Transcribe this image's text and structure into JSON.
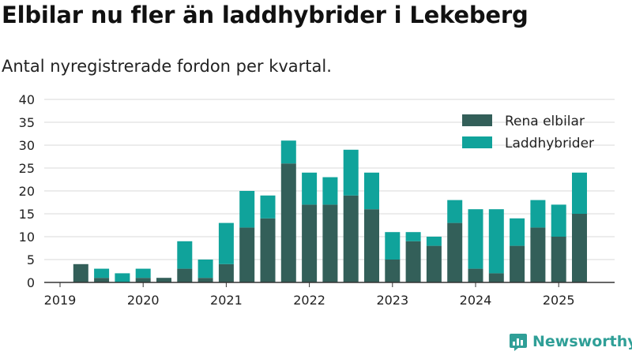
{
  "title": "Elbilar nu fler än laddhybrider i Lekeberg",
  "subtitle": "Antal nyregistrerade fordon per kvartal.",
  "logo_text": "Newsworthy",
  "colors": {
    "elbilar": "#335f59",
    "laddhybrider": "#10a39b",
    "grid": "#d9d9d9",
    "axis": "#333333",
    "logo": "#2f9f97"
  },
  "chart_data": {
    "type": "bar",
    "stacked": true,
    "categories": [
      "2019 Q1",
      "2019 Q2",
      "2019 Q3",
      "2019 Q4",
      "2020 Q1",
      "2020 Q2",
      "2020 Q3",
      "2020 Q4",
      "2021 Q1",
      "2021 Q2",
      "2021 Q3",
      "2021 Q4",
      "2022 Q1",
      "2022 Q2",
      "2022 Q3",
      "2022 Q4",
      "2023 Q1",
      "2023 Q2",
      "2023 Q3",
      "2023 Q4",
      "2024 Q1",
      "2024 Q2",
      "2024 Q3",
      "2024 Q4",
      "2025 Q1",
      "2025 Q2"
    ],
    "series": [
      {
        "name": "Rena elbilar",
        "values": [
          0,
          4,
          1,
          0,
          1,
          1,
          3,
          1,
          4,
          12,
          14,
          26,
          17,
          17,
          19,
          16,
          5,
          9,
          8,
          13,
          3,
          2,
          8,
          12,
          10,
          15
        ]
      },
      {
        "name": "Laddhybrider",
        "values": [
          0,
          0,
          2,
          2,
          2,
          0,
          6,
          4,
          9,
          8,
          5,
          5,
          7,
          6,
          10,
          8,
          6,
          2,
          2,
          5,
          13,
          14,
          6,
          6,
          7,
          9
        ]
      }
    ],
    "x_tick_labels": [
      "2019",
      "2020",
      "2021",
      "2022",
      "2023",
      "2024",
      "2025"
    ],
    "y_ticks": [
      0,
      5,
      10,
      15,
      20,
      25,
      30,
      35,
      40
    ],
    "ylim": [
      0,
      40
    ],
    "grid": true,
    "legend_position": "top-right"
  }
}
